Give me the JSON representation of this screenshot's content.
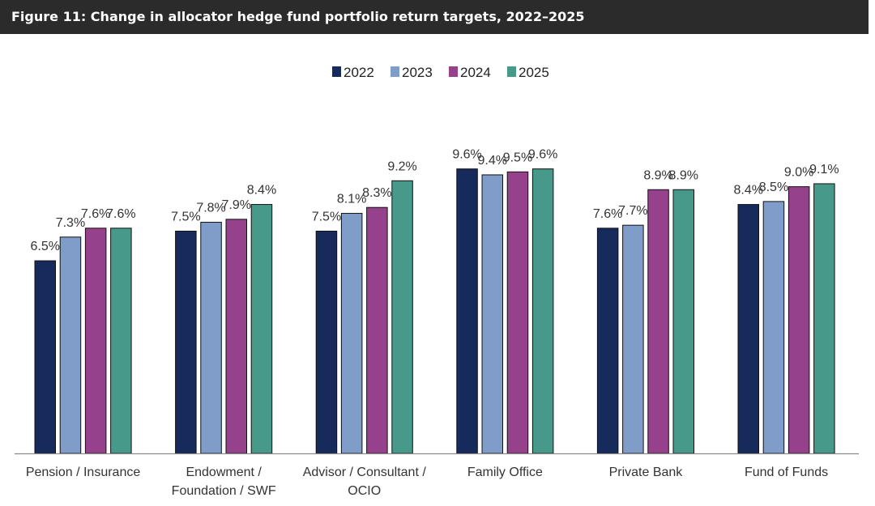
{
  "title": "Figure 11: Change in allocator hedge fund portfolio return targets, 2022–2025",
  "chart_data": {
    "type": "bar",
    "title": "Figure 11: Change in allocator hedge fund portfolio return targets, 2022–2025",
    "categories": [
      [
        "Pension / Insurance"
      ],
      [
        "Endowment /",
        "Foundation / SWF"
      ],
      [
        "Advisor / Consultant /",
        "OCIO"
      ],
      [
        "Family Office"
      ],
      [
        "Private Bank"
      ],
      [
        "Fund of Funds"
      ]
    ],
    "series": [
      {
        "name": "2022",
        "color": "#172a5c",
        "values": [
          6.5,
          7.5,
          7.5,
          9.6,
          7.6,
          8.4
        ]
      },
      {
        "name": "2023",
        "color": "#7f9dc8",
        "values": [
          7.3,
          7.8,
          8.1,
          9.4,
          7.7,
          8.5
        ]
      },
      {
        "name": "2024",
        "color": "#95418b",
        "values": [
          7.6,
          7.9,
          8.3,
          9.5,
          8.9,
          9.0
        ]
      },
      {
        "name": "2025",
        "color": "#479a8a",
        "values": [
          7.6,
          8.4,
          9.2,
          9.6,
          8.9,
          9.1
        ]
      }
    ],
    "value_suffix": "%",
    "ylim": [
      0,
      10
    ],
    "grid": false,
    "legend": "top-center",
    "xlabel": "",
    "ylabel": ""
  }
}
